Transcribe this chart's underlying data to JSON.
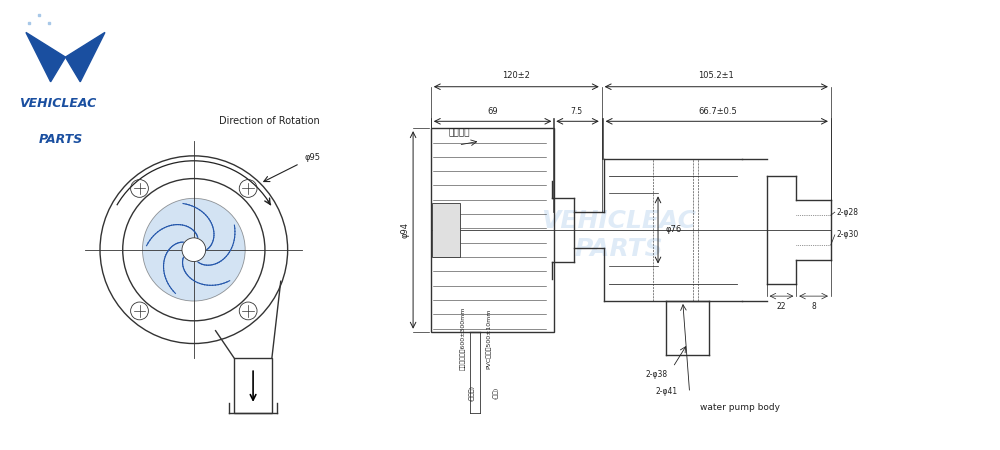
{
  "bg_color": "#ffffff",
  "line_color": "#333333",
  "dim_color": "#222222",
  "blue_color": "#1a4fa0",
  "light_blue": "#a8c8e8",
  "watermark_color": "#c0d8f0",
  "logo_text1": "VEHICLEAC",
  "logo_text2": "PARTS",
  "direction_text": "Direction of Rotation",
  "dim_120": "120±2",
  "dim_105": "105.2±1",
  "dim_69": "69",
  "dim_7_5": "7.5",
  "dim_66_7": "66.7±0.5",
  "dim_phi94": "φ94",
  "dim_phi76": "φ76",
  "dim_phi95": "φ95",
  "dim_phi38": "2-φ38",
  "dim_phi41": "2-φ41",
  "dim_phi28": "2-φ28",
  "dim_phi30": "2-φ30",
  "dim_22": "22",
  "dim_8": "8",
  "label_motor": "无刷电机",
  "label_wire1": "引出线长度：600±300mm",
  "label_wire2": "(红、蓝)",
  "label_pvc1": "PVC套管：500±10mm",
  "label_pvc2": "(黑色)",
  "label_body": "water pump body"
}
